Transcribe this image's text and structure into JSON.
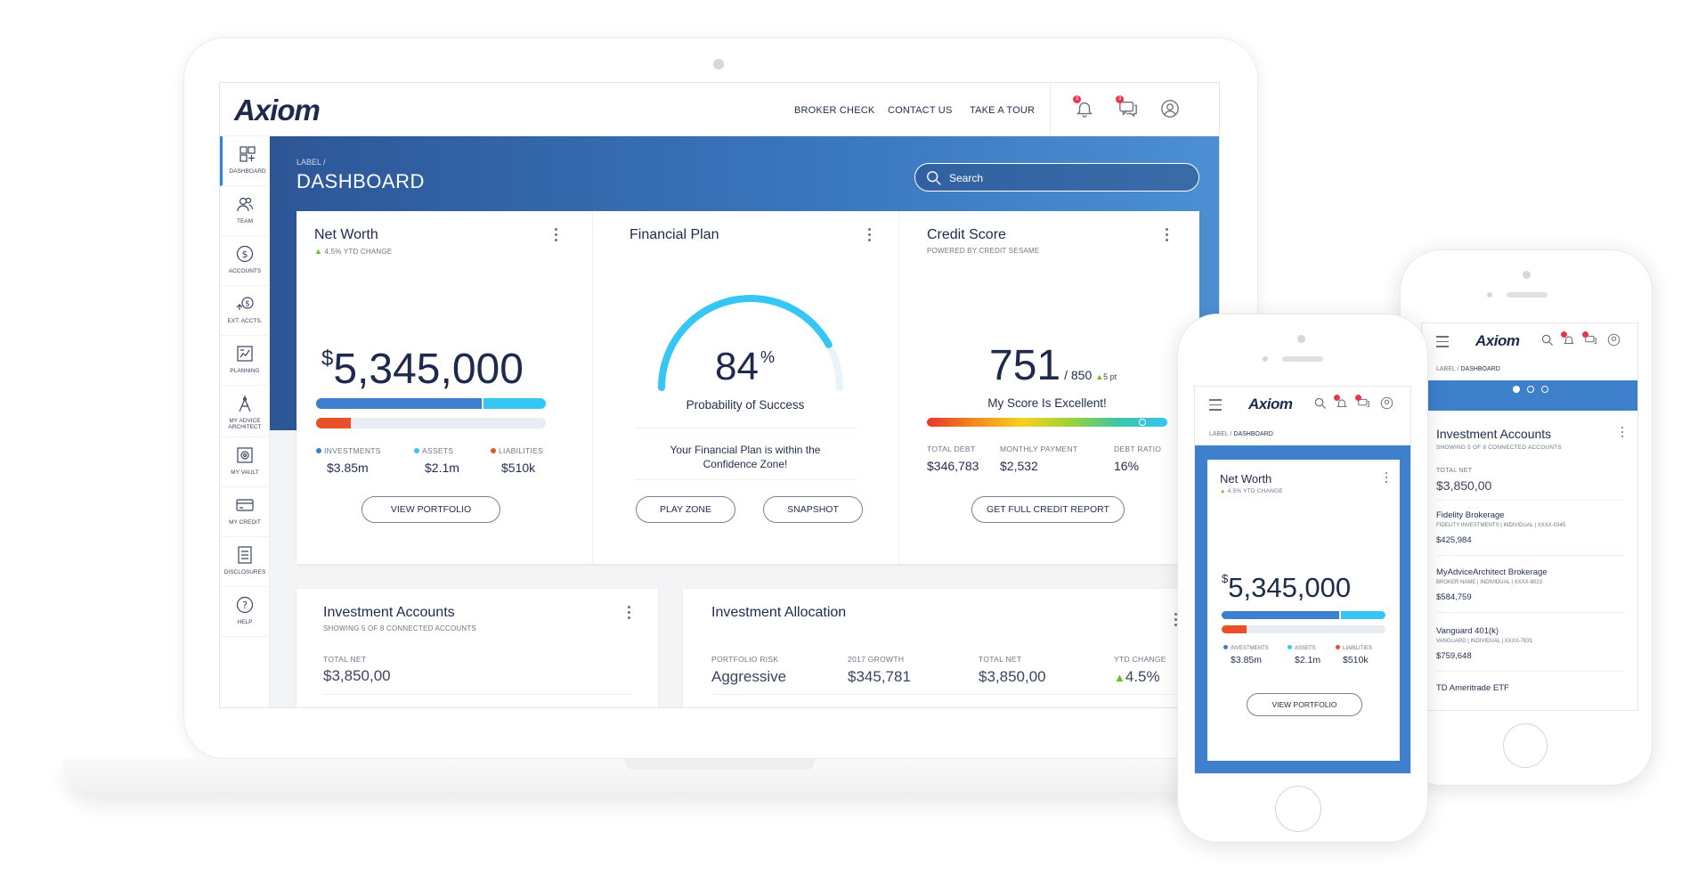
{
  "brand": {
    "logo": "Axiom"
  },
  "topnav": {
    "items": [
      "BROKER CHECK",
      "CONTACT US",
      "TAKE A TOUR"
    ],
    "notif_count": "3",
    "msg_count": "3"
  },
  "sidebar": {
    "items": [
      {
        "label": "DASHBOARD",
        "icon": "dashboard-icon"
      },
      {
        "label": "TEAM",
        "icon": "team-icon"
      },
      {
        "label": "ACCOUNTS",
        "icon": "dollar-circle-icon"
      },
      {
        "label": "EXT. ACCTS.",
        "icon": "external-accounts-icon"
      },
      {
        "label": "PLANNING",
        "icon": "planning-icon"
      },
      {
        "label": "MY ADVICE ARCHITECT",
        "icon": "architect-icon"
      },
      {
        "label": "MY VAULT",
        "icon": "vault-icon"
      },
      {
        "label": "MY CREDIT",
        "icon": "credit-card-icon"
      },
      {
        "label": "DISCLOSURES",
        "icon": "document-icon"
      },
      {
        "label": "HELP",
        "icon": "help-icon"
      }
    ]
  },
  "header": {
    "breadcrumb": "LABEL  /",
    "title": "DASHBOARD",
    "search_placeholder": "Search"
  },
  "net_worth": {
    "title": "Net Worth",
    "ytd": "4.5% YTD CHANGE",
    "currency": "$",
    "amount": "5,345,000",
    "bar_investments_fraction": 0.73,
    "bar_liabilities_fraction": 0.15,
    "legend": [
      {
        "label": "INVESTMENTS",
        "value": "$3.85m",
        "color": "#3b7fd0"
      },
      {
        "label": "ASSETS",
        "value": "$2.1m",
        "color": "#35c6f4"
      },
      {
        "label": "LIABILITIES",
        "value": "$510k",
        "color": "#e8502a"
      }
    ],
    "button": "VIEW PORTFOLIO"
  },
  "financial_plan": {
    "title": "Financial Plan",
    "percent": "84",
    "percent_sign": "%",
    "percent_value": 84,
    "caption": "Probability of Success",
    "message_line1": "Your Financial Plan is within the",
    "message_line2": "Confidence Zone!",
    "buttons": [
      "PLAY ZONE",
      "SNAPSHOT"
    ]
  },
  "credit_score": {
    "title": "Credit Score",
    "powered": "POWERED BY CREDIT SESAME",
    "score": "751",
    "max": "/ 850",
    "change": "5 pt",
    "caption": "My Score Is Excellent!",
    "marker_fraction": 0.88,
    "stats": [
      {
        "label": "TOTAL DEBT",
        "value": "$346,783"
      },
      {
        "label": "MONTHLY PAYMENT",
        "value": "$2,532"
      },
      {
        "label": "DEBT RATIO",
        "value": "16%"
      }
    ],
    "button": "GET FULL CREDIT REPORT"
  },
  "investment_accounts": {
    "title": "Investment Accounts",
    "sub": "SHOWING 5 OF 8 CONNECTED ACCOUNTS",
    "total_label": "TOTAL NET",
    "total": "$3,850,00",
    "accounts": [
      {
        "name": "Fidelity Brokerage",
        "detail": "FIDELITY INVESTMENTS | INDIVIDUAL | XXXX-0345",
        "value": "$425,984"
      },
      {
        "name": "MyAdviceArchitect Brokerage",
        "detail": "BROKER NAME | INDIVIDUAL | XXXX-8023",
        "value": "$584,759"
      },
      {
        "name": "Vanguard 401(k)",
        "detail": "VANGUARD | INDIVIDUAL | XXXX-7631",
        "value": "$759,648"
      },
      {
        "name": "TD Ameritrade ETF",
        "detail": "",
        "value": ""
      }
    ]
  },
  "investment_allocation": {
    "title": "Investment Allocation",
    "stats": [
      {
        "label": "PORTFOLIO RISK",
        "value": "Aggressive"
      },
      {
        "label": "2017 GROWTH",
        "value": "$345,781"
      },
      {
        "label": "TOTAL NET",
        "value": "$3,850,00"
      },
      {
        "label": "YTD CHANGE",
        "value": "4.5%"
      }
    ]
  },
  "mobile": {
    "breadcrumb_label": "LABEL",
    "breadcrumb_sep": "/",
    "breadcrumb_page": "DASHBOARD"
  }
}
